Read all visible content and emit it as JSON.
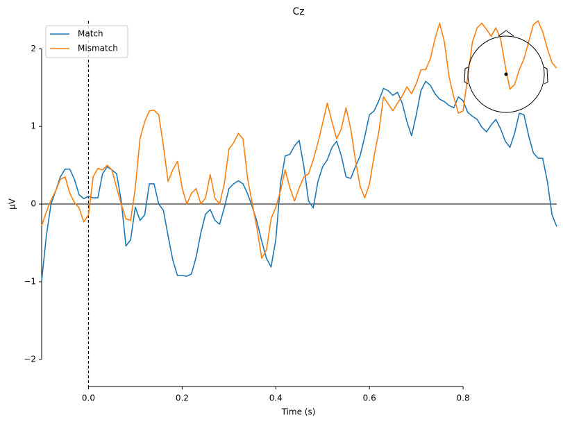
{
  "chart_data": {
    "type": "line",
    "title": "Cz",
    "xlabel": "Time (s)",
    "ylabel": "µV",
    "x": [
      -0.1,
      -0.09,
      -0.08,
      -0.07,
      -0.06,
      -0.05,
      -0.04,
      -0.03,
      -0.02,
      -0.01,
      0,
      0.01,
      0.02,
      0.03,
      0.04,
      0.05,
      0.06,
      0.07,
      0.08,
      0.09,
      0.1,
      0.11,
      0.12,
      0.13,
      0.14,
      0.15,
      0.16,
      0.17,
      0.18,
      0.19,
      0.2,
      0.21,
      0.22,
      0.23,
      0.24,
      0.25,
      0.26,
      0.27,
      0.28,
      0.29,
      0.3,
      0.31,
      0.32,
      0.33,
      0.34,
      0.35,
      0.36,
      0.37,
      0.38,
      0.39,
      0.4,
      0.41,
      0.42,
      0.43,
      0.44,
      0.45,
      0.46,
      0.47,
      0.48,
      0.49,
      0.5,
      0.51,
      0.52,
      0.53,
      0.54,
      0.55,
      0.56,
      0.57,
      0.58,
      0.59,
      0.6,
      0.61,
      0.62,
      0.63,
      0.64,
      0.65,
      0.66,
      0.67,
      0.68,
      0.69,
      0.7,
      0.71,
      0.72,
      0.73,
      0.74,
      0.75,
      0.76,
      0.77,
      0.78,
      0.79,
      0.8,
      0.81,
      0.82,
      0.83,
      0.84,
      0.85,
      0.86,
      0.87,
      0.88,
      0.89,
      0.9,
      0.91,
      0.92,
      0.93,
      0.94,
      0.95,
      0.96,
      0.97,
      0.98,
      0.99,
      1.0
    ],
    "series": [
      {
        "name": "Match",
        "color": "#1f77b4",
        "values": [
          -0.99,
          -0.41,
          0.0,
          0.17,
          0.35,
          0.45,
          0.45,
          0.32,
          0.12,
          0.07,
          0.1,
          0.08,
          0.08,
          0.39,
          0.48,
          0.44,
          0.39,
          0.04,
          -0.54,
          -0.46,
          -0.04,
          -0.21,
          -0.14,
          0.26,
          0.26,
          0.0,
          -0.08,
          -0.41,
          -0.72,
          -0.92,
          -0.92,
          -0.93,
          -0.9,
          -0.68,
          -0.37,
          -0.13,
          -0.07,
          -0.21,
          -0.26,
          -0.05,
          0.2,
          0.26,
          0.3,
          0.26,
          0.13,
          -0.04,
          -0.23,
          -0.48,
          -0.7,
          -0.81,
          -0.46,
          0.26,
          0.62,
          0.64,
          0.75,
          0.82,
          0.48,
          0.04,
          -0.05,
          0.29,
          0.48,
          0.57,
          0.73,
          0.81,
          0.62,
          0.35,
          0.33,
          0.48,
          0.62,
          0.87,
          1.15,
          1.2,
          1.33,
          1.49,
          1.46,
          1.4,
          1.44,
          1.3,
          1.06,
          0.88,
          1.15,
          1.46,
          1.58,
          1.53,
          1.42,
          1.35,
          1.32,
          1.27,
          1.24,
          1.38,
          1.33,
          1.18,
          1.13,
          1.09,
          0.99,
          0.93,
          1.02,
          1.09,
          0.97,
          0.81,
          0.73,
          0.91,
          1.17,
          1.15,
          0.88,
          0.66,
          0.59,
          0.59,
          0.29,
          -0.14,
          -0.29
        ]
      },
      {
        "name": "Mismatch",
        "color": "#ff7f0e",
        "values": [
          -0.28,
          -0.1,
          0.05,
          0.17,
          0.32,
          0.35,
          0.14,
          0.02,
          -0.05,
          -0.23,
          -0.14,
          0.35,
          0.46,
          0.44,
          0.5,
          0.44,
          0.21,
          0.0,
          -0.19,
          -0.21,
          0.21,
          0.84,
          1.06,
          1.2,
          1.21,
          1.15,
          0.75,
          0.29,
          0.44,
          0.55,
          0.21,
          0.0,
          0.14,
          0.2,
          0.0,
          0.08,
          0.38,
          0.08,
          0.0,
          0.26,
          0.71,
          0.79,
          0.91,
          0.84,
          0.32,
          0.0,
          -0.32,
          -0.7,
          -0.59,
          -0.19,
          -0.04,
          0.17,
          0.44,
          0.21,
          0.04,
          0.21,
          0.35,
          0.39,
          0.57,
          0.79,
          1.04,
          1.3,
          1.06,
          0.84,
          0.97,
          1.24,
          0.97,
          0.57,
          0.23,
          0.08,
          0.26,
          0.62,
          0.93,
          1.38,
          1.29,
          1.2,
          1.3,
          1.39,
          1.51,
          1.42,
          1.55,
          1.73,
          1.73,
          1.87,
          2.13,
          2.33,
          2.09,
          1.64,
          1.38,
          1.17,
          1.2,
          1.64,
          2.09,
          2.27,
          2.33,
          2.25,
          2.16,
          2.27,
          2.13,
          1.78,
          1.48,
          1.54,
          1.73,
          1.87,
          2.09,
          2.31,
          2.36,
          2.22,
          2.0,
          1.82,
          1.75
        ]
      }
    ],
    "xlim": [
      -0.1,
      1.0
    ],
    "ylim": [
      -2.35,
      2.36
    ],
    "xticks": [
      {
        "value": 0,
        "label": "0.0"
      },
      0.2,
      0.4,
      0.6,
      0.8
    ],
    "yticks": [
      {
        "value": -2,
        "label": "−2"
      },
      {
        "value": -1,
        "label": "−1"
      },
      0,
      1,
      2
    ],
    "legend": "upper left"
  }
}
